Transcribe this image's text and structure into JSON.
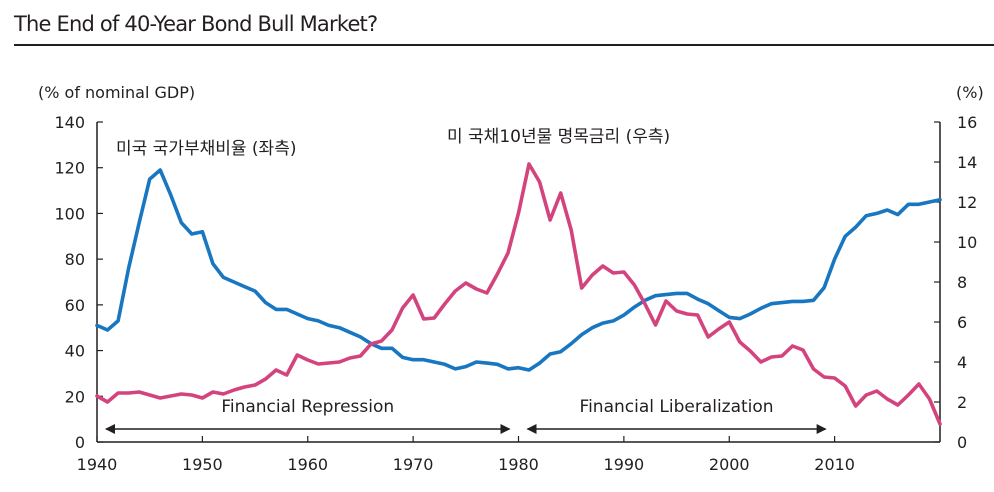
{
  "title": "The End of 40-Year Bond Bull Market?",
  "chart_data": {
    "type": "line",
    "title": "The End of 40-Year Bond Bull Market?",
    "left_axis": {
      "label": "(% of nominal GDP)",
      "range": [
        0,
        140
      ],
      "ticks": [
        0,
        20,
        40,
        60,
        80,
        100,
        120,
        140
      ]
    },
    "right_axis": {
      "label": "(%)",
      "range": [
        0,
        16
      ],
      "ticks": [
        0,
        2,
        4,
        6,
        8,
        10,
        12,
        14,
        16
      ]
    },
    "x_axis": {
      "range": [
        1940,
        2020
      ],
      "ticks": [
        1940,
        1950,
        1960,
        1970,
        1980,
        1990,
        2000,
        2010
      ]
    },
    "colors": {
      "debt": "#1877c0",
      "yield": "#d3447f",
      "axis": "#231f20"
    },
    "series": [
      {
        "name": "미국 국가부채비율 (좌측)",
        "axis": "left",
        "x": [
          1940,
          1941,
          1942,
          1943,
          1944,
          1945,
          1946,
          1947,
          1948,
          1949,
          1950,
          1951,
          1952,
          1953,
          1954,
          1955,
          1956,
          1957,
          1958,
          1959,
          1960,
          1961,
          1962,
          1963,
          1964,
          1965,
          1966,
          1967,
          1968,
          1969,
          1970,
          1971,
          1972,
          1973,
          1974,
          1975,
          1976,
          1977,
          1978,
          1979,
          1980,
          1981,
          1982,
          1983,
          1984,
          1985,
          1986,
          1987,
          1988,
          1989,
          1990,
          1991,
          1992,
          1993,
          1994,
          1995,
          1996,
          1997,
          1998,
          1999,
          2000,
          2001,
          2002,
          2003,
          2004,
          2005,
          2006,
          2007,
          2008,
          2009,
          2010,
          2011,
          2012,
          2013,
          2014,
          2015,
          2016,
          2017,
          2018,
          2019,
          2020
        ],
        "values": [
          51,
          49,
          53,
          76,
          96,
          115,
          119,
          108,
          96,
          91,
          92,
          78,
          72,
          70,
          68,
          66,
          61,
          58,
          58,
          56,
          54,
          53,
          51,
          50,
          48,
          46,
          43,
          41,
          41,
          37,
          36,
          36,
          35,
          34,
          32,
          33,
          35,
          34.5,
          34,
          32,
          32.5,
          31.5,
          34.5,
          38.5,
          39.5,
          43,
          47,
          50,
          52,
          53,
          55.5,
          59,
          62,
          64,
          64.5,
          65,
          65,
          62.5,
          60.5,
          57.5,
          54.5,
          54,
          56,
          58.5,
          60.5,
          61,
          61.5,
          61.5,
          62,
          67.5,
          80,
          90,
          94,
          99,
          100,
          101.5,
          99.5,
          104,
          104,
          105,
          106
        ]
      },
      {
        "name": "미 국채10년물 명목금리 (우측)",
        "axis": "right",
        "x": [
          1940,
          1941,
          1942,
          1943,
          1944,
          1945,
          1946,
          1947,
          1948,
          1949,
          1950,
          1951,
          1952,
          1953,
          1954,
          1955,
          1956,
          1957,
          1958,
          1959,
          1960,
          1961,
          1962,
          1963,
          1964,
          1965,
          1966,
          1967,
          1968,
          1969,
          1970,
          1971,
          1972,
          1973,
          1974,
          1975,
          1976,
          1977,
          1978,
          1979,
          1980,
          1981,
          1982,
          1983,
          1984,
          1985,
          1986,
          1987,
          1988,
          1989,
          1990,
          1991,
          1992,
          1993,
          1994,
          1995,
          1996,
          1997,
          1998,
          1999,
          2000,
          2001,
          2002,
          2003,
          2004,
          2005,
          2006,
          2007,
          2008,
          2009,
          2010,
          2011,
          2012,
          2013,
          2014,
          2015,
          2016,
          2017,
          2018,
          2019,
          2020
        ],
        "values": [
          2.3,
          2.0,
          2.45,
          2.45,
          2.5,
          2.35,
          2.2,
          2.3,
          2.4,
          2.35,
          2.2,
          2.5,
          2.4,
          2.6,
          2.75,
          2.85,
          3.15,
          3.6,
          3.35,
          4.35,
          4.1,
          3.9,
          3.95,
          4.0,
          4.2,
          4.3,
          4.9,
          5.05,
          5.6,
          6.7,
          7.35,
          6.15,
          6.2,
          6.9,
          7.55,
          7.95,
          7.65,
          7.45,
          8.4,
          9.45,
          11.45,
          13.9,
          13.0,
          11.1,
          12.45,
          10.6,
          7.7,
          8.35,
          8.8,
          8.45,
          8.5,
          7.85,
          6.9,
          5.85,
          7.05,
          6.55,
          6.4,
          6.35,
          5.25,
          5.65,
          6.0,
          5.0,
          4.55,
          4.0,
          4.25,
          4.3,
          4.8,
          4.6,
          3.65,
          3.25,
          3.2,
          2.8,
          1.8,
          2.35,
          2.55,
          2.15,
          1.85,
          2.35,
          2.9,
          2.15,
          0.9
        ]
      }
    ],
    "annotations": [
      {
        "text": "Financial Repression",
        "from": 1940,
        "to": 1980
      },
      {
        "text": "Financial Liberalization",
        "from": 1980,
        "to": 2010
      }
    ]
  }
}
